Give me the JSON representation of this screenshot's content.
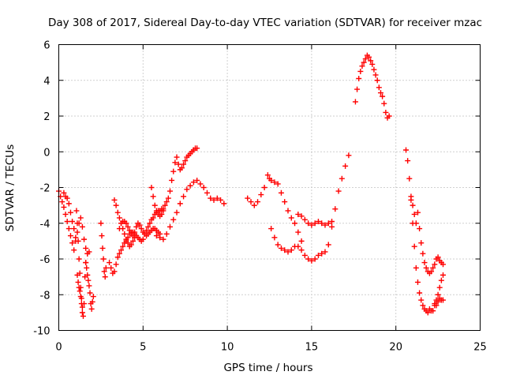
{
  "chart_data": {
    "type": "scatter",
    "title": "Day 308 of 2017, Sidereal Day-to-day VTEC variation (SDTVAR) for receiver mzac",
    "xlabel": "GPS time / hours",
    "ylabel": "SDTVAR / TECUs",
    "xlim": [
      0,
      25
    ],
    "ylim": [
      -10,
      6
    ],
    "xticks": [
      "0",
      "5",
      "10",
      "15",
      "20",
      "25"
    ],
    "yticks": [
      "-10",
      "-8",
      "-6",
      "-4",
      "-2",
      "0",
      "2",
      "4",
      "6"
    ],
    "grid": true,
    "marker": "plus",
    "color": "#ff0000",
    "series": [
      {
        "x": [
          0.0,
          0.1,
          0.2,
          0.3,
          0.4,
          0.5,
          0.6,
          0.7,
          0.8,
          0.9,
          1.0,
          1.1,
          1.2,
          1.3,
          1.4,
          1.5,
          1.6,
          1.7
        ],
        "y": [
          -2.2,
          -2.5,
          -2.8,
          -3.1,
          -3.5,
          -3.9,
          -4.3,
          -4.7,
          -5.1,
          -5.5,
          -5.0,
          -4.5,
          -4.0,
          -3.7,
          -4.2,
          -4.9,
          -5.4,
          -5.7
        ]
      },
      {
        "x": [
          0.3,
          0.4,
          0.5,
          0.6,
          0.7,
          0.8,
          0.9,
          1.0
        ],
        "y": [
          -2.3,
          -2.5,
          -2.6,
          -2.9,
          -3.4,
          -3.9,
          -4.3,
          -4.8
        ]
      },
      {
        "x": [
          1.05,
          1.1,
          1.15,
          1.2,
          1.25,
          1.3,
          1.35,
          1.4,
          1.45,
          1.5,
          1.55,
          1.6,
          1.7,
          1.8
        ],
        "y": [
          -3.3,
          -4.0,
          -5.0,
          -6.0,
          -6.8,
          -7.6,
          -8.2,
          -8.7,
          -9.2,
          -8.5,
          -7.0,
          -6.2,
          -5.7,
          -5.6
        ]
      },
      {
        "x": [
          1.1,
          1.15,
          1.2,
          1.25,
          1.3,
          1.35,
          1.4
        ],
        "y": [
          -6.9,
          -7.3,
          -7.6,
          -7.8,
          -8.1,
          -8.5,
          -9.0
        ]
      },
      {
        "x": [
          1.6,
          1.65,
          1.7,
          1.75,
          1.8,
          1.85,
          1.9,
          1.95,
          2.0,
          2.05
        ],
        "y": [
          -6.2,
          -6.5,
          -6.9,
          -7.2,
          -7.5,
          -7.9,
          -8.5,
          -8.8,
          -8.4,
          -8.1
        ]
      },
      {
        "x": [
          2.5,
          2.55,
          2.6,
          2.65,
          2.7,
          2.75,
          2.8
        ],
        "y": [
          -4.0,
          -4.7,
          -5.4,
          -6.0,
          -6.7,
          -7.0,
          -6.5
        ]
      },
      {
        "x": [
          3.0,
          3.1,
          3.2,
          3.3,
          3.4,
          3.5,
          3.6,
          3.7,
          3.8,
          3.9,
          4.0,
          4.1,
          4.2,
          4.3,
          4.4,
          4.5
        ],
        "y": [
          -6.2,
          -6.5,
          -6.8,
          -6.7,
          -6.3,
          -5.9,
          -5.7,
          -5.5,
          -5.3,
          -5.1,
          -5.0,
          -4.8,
          -4.6,
          -4.5,
          -4.5,
          -4.6
        ]
      },
      {
        "x": [
          3.3,
          3.4,
          3.5,
          3.6,
          3.7,
          3.8,
          3.9,
          4.0,
          4.1,
          4.2,
          4.3,
          4.4,
          4.5,
          4.6,
          4.7,
          4.8,
          4.9,
          5.0,
          5.1,
          5.2,
          5.3,
          5.4,
          5.5,
          5.6,
          5.7,
          5.8,
          5.9,
          6.0,
          6.1,
          6.2
        ],
        "y": [
          -2.7,
          -3.0,
          -3.4,
          -3.7,
          -4.0,
          -4.3,
          -4.6,
          -4.9,
          -5.1,
          -5.3,
          -5.2,
          -5.0,
          -4.8,
          -4.7,
          -4.8,
          -4.9,
          -5.0,
          -4.9,
          -4.6,
          -4.4,
          -4.2,
          -4.0,
          -3.8,
          -3.7,
          -3.5,
          -3.4,
          -3.3,
          -3.3,
          -3.2,
          -3.2
        ]
      },
      {
        "x": [
          3.6,
          3.7,
          3.8,
          3.9,
          4.0,
          4.1,
          4.2,
          4.3,
          4.4,
          4.5,
          4.6,
          4.7,
          4.8,
          4.9,
          5.0,
          5.1,
          5.2,
          5.3,
          5.4,
          5.5,
          5.6,
          5.7,
          5.8,
          5.9,
          6.0
        ],
        "y": [
          -4.3,
          -4.0,
          -3.9,
          -3.9,
          -4.0,
          -4.2,
          -4.4,
          -4.6,
          -4.7,
          -4.5,
          -4.2,
          -4.0,
          -4.1,
          -4.3,
          -4.5,
          -4.6,
          -4.7,
          -4.6,
          -4.5,
          -4.4,
          -4.3,
          -4.3,
          -4.4,
          -4.5,
          -4.6
        ]
      },
      {
        "x": [
          5.5,
          5.6,
          5.7,
          5.8,
          5.9,
          6.0,
          6.1,
          6.2,
          6.3,
          6.4,
          6.5,
          6.6,
          6.7,
          6.8,
          6.9,
          7.0,
          7.1,
          7.2,
          7.3,
          7.4,
          7.5,
          7.6,
          7.7,
          7.8,
          7.9,
          8.0,
          8.1,
          8.2
        ],
        "y": [
          -2.0,
          -2.5,
          -3.0,
          -3.3,
          -3.5,
          -3.6,
          -3.5,
          -3.3,
          -3.0,
          -2.8,
          -2.6,
          -2.2,
          -1.6,
          -1.1,
          -0.6,
          -0.3,
          -0.7,
          -1.0,
          -0.9,
          -0.7,
          -0.5,
          -0.3,
          -0.2,
          -0.1,
          0.0,
          0.1,
          0.2,
          0.2
        ]
      },
      {
        "x": [
          5.8,
          6.0,
          6.2,
          6.4,
          6.6,
          6.8,
          7.0,
          7.2,
          7.4,
          7.6,
          7.8,
          8.0,
          8.2,
          8.4,
          8.6,
          8.8,
          9.0,
          9.2,
          9.4,
          9.6,
          9.8
        ],
        "y": [
          -4.7,
          -4.8,
          -4.9,
          -4.6,
          -4.2,
          -3.8,
          -3.4,
          -2.9,
          -2.5,
          -2.1,
          -1.9,
          -1.7,
          -1.6,
          -1.8,
          -2.0,
          -2.3,
          -2.6,
          -2.7,
          -2.6,
          -2.7,
          -2.9
        ]
      },
      {
        "x": [
          11.2,
          11.4,
          11.6,
          11.8,
          12.0,
          12.2,
          12.4,
          12.5,
          12.6,
          12.8,
          13.0,
          13.2,
          13.4,
          13.6,
          13.8,
          14.0,
          14.2,
          14.4
        ],
        "y": [
          -2.6,
          -2.8,
          -3.0,
          -2.8,
          -2.4,
          -2.0,
          -1.3,
          -1.5,
          -1.6,
          -1.7,
          -1.8,
          -2.3,
          -2.8,
          -3.3,
          -3.7,
          -4.0,
          -4.5,
          -5.0
        ]
      },
      {
        "x": [
          12.6,
          12.8,
          13.0,
          13.2,
          13.4,
          13.6,
          13.8,
          14.0,
          14.2,
          14.4,
          14.6,
          14.8,
          15.0,
          15.2,
          15.4,
          15.6,
          15.8,
          16.0,
          16.2,
          16.4,
          16.6,
          16.8,
          17.0,
          17.2
        ],
        "y": [
          -4.3,
          -4.8,
          -5.2,
          -5.4,
          -5.5,
          -5.6,
          -5.5,
          -5.3,
          -5.3,
          -5.5,
          -5.8,
          -6.0,
          -6.1,
          -6.0,
          -5.8,
          -5.7,
          -5.6,
          -5.2,
          -4.2,
          -3.2,
          -2.2,
          -1.5,
          -0.8,
          -0.2
        ]
      },
      {
        "x": [
          14.2,
          14.4,
          14.6,
          14.8,
          15.0,
          15.2,
          15.4,
          15.6,
          15.8,
          16.0,
          16.2
        ],
        "y": [
          -3.5,
          -3.6,
          -3.8,
          -4.0,
          -4.1,
          -4.0,
          -3.9,
          -4.0,
          -4.1,
          -4.0,
          -3.9
        ]
      },
      {
        "x": [
          17.6,
          17.7,
          17.8,
          17.9,
          18.0,
          18.1,
          18.2,
          18.3,
          18.4,
          18.5,
          18.6,
          18.7,
          18.8,
          18.9,
          19.0,
          19.1,
          19.2,
          19.3,
          19.4,
          19.5,
          19.6
        ],
        "y": [
          2.8,
          3.5,
          4.1,
          4.5,
          4.8,
          5.0,
          5.2,
          5.4,
          5.3,
          5.1,
          4.9,
          4.6,
          4.3,
          4.0,
          3.6,
          3.3,
          3.1,
          2.7,
          2.2,
          1.9,
          2.0
        ]
      },
      {
        "x": [
          20.6,
          20.7,
          20.8,
          20.9,
          21.0,
          21.1,
          21.2,
          21.3,
          21.4,
          21.5,
          21.6,
          21.7,
          21.8,
          21.9,
          22.0,
          22.1,
          22.2,
          22.3,
          22.4,
          22.5,
          22.6,
          22.7,
          22.8
        ],
        "y": [
          0.1,
          -0.5,
          -1.5,
          -2.7,
          -4.0,
          -5.3,
          -6.5,
          -7.3,
          -7.9,
          -8.3,
          -8.6,
          -8.8,
          -8.9,
          -9.0,
          -8.8,
          -8.9,
          -8.9,
          -8.6,
          -8.3,
          -8.0,
          -7.6,
          -7.2,
          -6.9
        ]
      },
      {
        "x": [
          20.9,
          21.0,
          21.1,
          21.2,
          21.3,
          21.4,
          21.5,
          21.6,
          21.7,
          21.8,
          21.9,
          22.0,
          22.1,
          22.2,
          22.3,
          22.4,
          22.5,
          22.6,
          22.7,
          22.8
        ],
        "y": [
          -2.5,
          -3.0,
          -3.5,
          -4.0,
          -3.4,
          -4.3,
          -5.1,
          -5.7,
          -6.2,
          -6.5,
          -6.7,
          -6.8,
          -6.7,
          -6.5,
          -6.3,
          -6.0,
          -5.9,
          -6.1,
          -6.2,
          -6.3
        ]
      },
      {
        "x": [
          22.3,
          22.4,
          22.5,
          22.6,
          22.7,
          22.8
        ],
        "y": [
          -8.5,
          -8.6,
          -8.4,
          -8.2,
          -8.3,
          -8.3
        ]
      }
    ]
  }
}
